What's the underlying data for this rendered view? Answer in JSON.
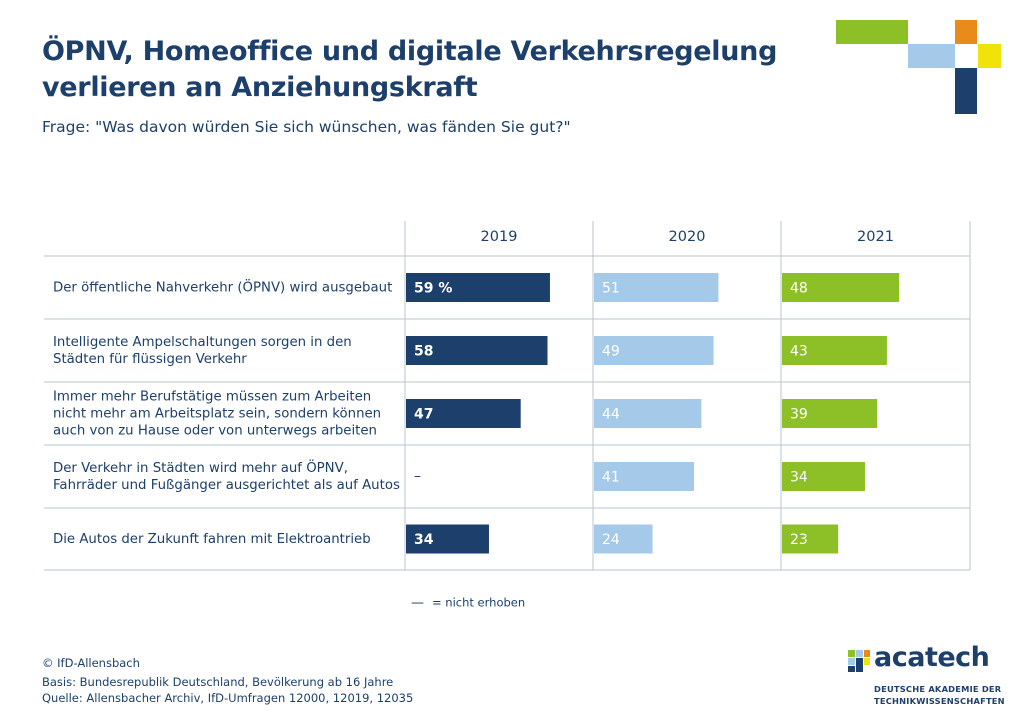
{
  "title_line1": "ÖPNV, Homeoffice und digitale Verkehrsregelung",
  "title_line2": "verlieren an Anziehungskraft",
  "subtitle": "Frage: \"Was davon würden Sie sich wünschen, was fänden Sie gut?\"",
  "colors": {
    "navy": "#1d3f6b",
    "light_blue": "#a4c9e9",
    "green": "#8dbf26",
    "orange": "#e98b1a",
    "yellow": "#f1e20a",
    "grid": "#b8c4d2"
  },
  "chart_data": {
    "type": "bar",
    "orientation": "horizontal",
    "panels": [
      "2019",
      "2020",
      "2021"
    ],
    "categories": [
      [
        "Der öffentliche Nahverkehr (ÖPNV) wird ausgebaut"
      ],
      [
        "Intelligente Ampelschaltungen sorgen in den",
        "Städten für flüssigen Verkehr"
      ],
      [
        "Immer mehr Berufstätige müssen zum Arbeiten",
        "nicht mehr am Arbeitsplatz sein, sondern können",
        "auch von zu Hause oder von unterwegs arbeiten"
      ],
      [
        "Der Verkehr in Städten wird mehr auf ÖPNV,",
        "Fahrräder und Fußgänger ausgerichtet als auf Autos"
      ],
      [
        "Die Autos der Zukunft fahren mit Elektroantrieb"
      ]
    ],
    "series": [
      {
        "name": "2019",
        "values": [
          59,
          58,
          47,
          null,
          34
        ],
        "labels": [
          "59 %",
          "58",
          "47",
          "–",
          "34"
        ]
      },
      {
        "name": "2020",
        "values": [
          51,
          49,
          44,
          41,
          24
        ],
        "labels": [
          "51",
          "49",
          "44",
          "41",
          "24"
        ]
      },
      {
        "name": "2021",
        "values": [
          48,
          43,
          39,
          34,
          23
        ],
        "labels": [
          "48",
          "43",
          "39",
          "34",
          "23"
        ]
      }
    ],
    "unit": "%",
    "xlim": [
      0,
      100
    ],
    "legend": {
      "symbol": "—",
      "text": "= nicht erhoben"
    }
  },
  "footer": {
    "copyright": "© IfD-Allensbach",
    "basis": "Basis: Bundesrepublik Deutschland, Bevölkerung ab 16 Jahre",
    "source": "Quelle: Allensbacher Archiv, IfD-Umfragen 12000, 12019, 12035"
  },
  "logo": {
    "name": "acatech",
    "sub_line1": "DEUTSCHE AKADEMIE DER",
    "sub_line2": "TECHNIKWISSENSCHAFTEN"
  }
}
